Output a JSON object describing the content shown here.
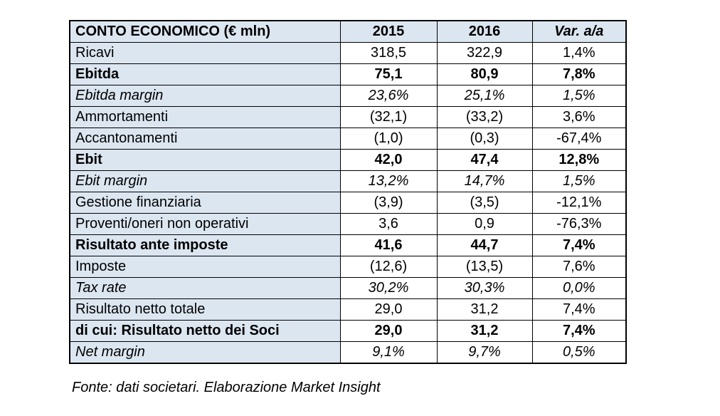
{
  "table": {
    "columns": {
      "label": "CONTO ECONOMICO (€ mln)",
      "y2015": "2015",
      "y2016": "2016",
      "var": "Var. a/a"
    },
    "rows": [
      {
        "label": "Ricavi",
        "y2015": "318,5",
        "y2016": "322,9",
        "var": "1,4%",
        "style": "normal"
      },
      {
        "label": "Ebitda",
        "y2015": "75,1",
        "y2016": "80,9",
        "var": "7,8%",
        "style": "bold"
      },
      {
        "label": "Ebitda margin",
        "y2015": "23,6%",
        "y2016": "25,1%",
        "var": "1,5%",
        "style": "italic"
      },
      {
        "label": "Ammortamenti",
        "y2015": "(32,1)",
        "y2016": "(33,2)",
        "var": "3,6%",
        "style": "normal"
      },
      {
        "label": "Accantonamenti",
        "y2015": "(1,0)",
        "y2016": "(0,3)",
        "var": "-67,4%",
        "style": "normal"
      },
      {
        "label": "Ebit",
        "y2015": "42,0",
        "y2016": "47,4",
        "var": "12,8%",
        "style": "bold"
      },
      {
        "label": "Ebit margin",
        "y2015": "13,2%",
        "y2016": "14,7%",
        "var": "1,5%",
        "style": "italic"
      },
      {
        "label": "Gestione finanziaria",
        "y2015": "(3,9)",
        "y2016": "(3,5)",
        "var": "-12,1%",
        "style": "normal"
      },
      {
        "label": "Proventi/oneri non operativi",
        "y2015": "3,6",
        "y2016": "0,9",
        "var": "-76,3%",
        "style": "normal"
      },
      {
        "label": "Risultato ante imposte",
        "y2015": "41,6",
        "y2016": "44,7",
        "var": "7,4%",
        "style": "bold"
      },
      {
        "label": "Imposte",
        "y2015": "(12,6)",
        "y2016": "(13,5)",
        "var": "7,6%",
        "style": "normal"
      },
      {
        "label": "Tax rate",
        "y2015": "30,2%",
        "y2016": "30,3%",
        "var": "0,0%",
        "style": "italic"
      },
      {
        "label": "Risultato netto totale",
        "y2015": "29,0",
        "y2016": "31,2",
        "var": "7,4%",
        "style": "normal"
      },
      {
        "label": "di cui: Risultato netto dei Soci",
        "y2015": "29,0",
        "y2016": "31,2",
        "var": "7,4%",
        "style": "bold"
      },
      {
        "label": "Net margin",
        "y2015": "9,1%",
        "y2016": "9,7%",
        "var": "0,5%",
        "style": "italic"
      }
    ]
  },
  "footer": {
    "source_note": "Fonte: dati societari. Elaborazione Market Insight"
  },
  "colors": {
    "header_bg": "#dce6f1",
    "border": "#000000",
    "page_bg": "#ffffff",
    "text": "#000000"
  }
}
